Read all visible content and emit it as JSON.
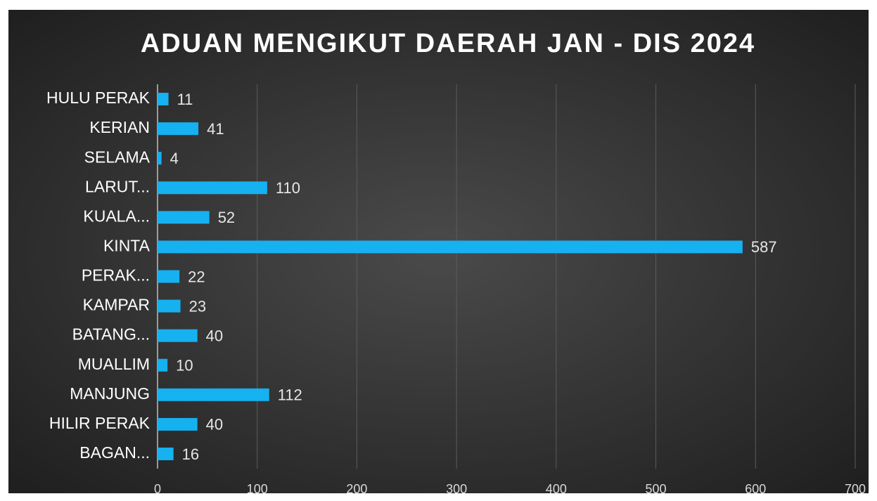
{
  "chart_data": {
    "type": "bar",
    "horizontal": true,
    "title": "ADUAN MENGIKUT DAERAH JAN - DIS 2024",
    "categories": [
      "HULU PERAK",
      "KERIAN",
      "SELAMA",
      "LARUT...",
      "KUALA...",
      "KINTA",
      "PERAK...",
      "KAMPAR",
      "BATANG...",
      "MUALLIM",
      "MANJUNG",
      "HILIR PERAK",
      "BAGAN..."
    ],
    "values": [
      11,
      41,
      4,
      110,
      52,
      587,
      22,
      23,
      40,
      10,
      112,
      40,
      16
    ],
    "color": "#16b1f0",
    "xlim": [
      0,
      700
    ],
    "xticks": [
      0,
      100,
      200,
      300,
      400,
      500,
      600,
      700
    ],
    "grid": true
  }
}
